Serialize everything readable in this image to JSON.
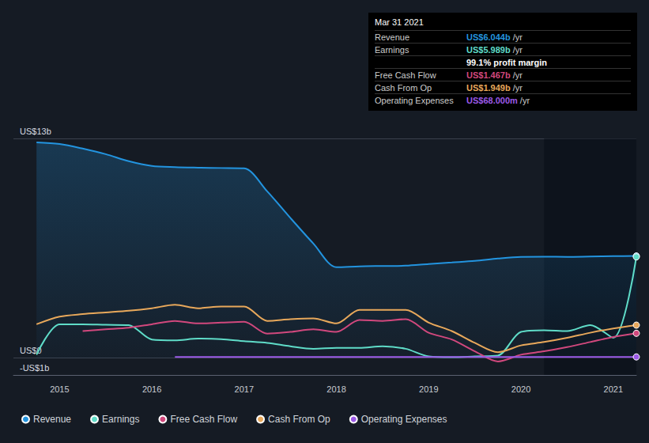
{
  "chart_data": {
    "type": "line",
    "x": [
      2014.75,
      2015,
      2015.25,
      2015.5,
      2015.75,
      2016,
      2016.25,
      2016.5,
      2016.75,
      2017,
      2017.25,
      2017.5,
      2017.75,
      2018,
      2018.25,
      2018.5,
      2018.75,
      2019,
      2019.25,
      2019.5,
      2019.75,
      2020,
      2020.25,
      2020.5,
      2020.75,
      2021,
      2021.25
    ],
    "series": [
      {
        "name": "Revenue",
        "type": "area",
        "color": "#2394df",
        "values": [
          12.77,
          12.67,
          12.4,
          12.07,
          11.65,
          11.37,
          11.3,
          11.27,
          11.25,
          11.23,
          9.87,
          8.3,
          6.78,
          5.38,
          5.43,
          5.45,
          5.47,
          5.57,
          5.66,
          5.75,
          5.89,
          5.99,
          6.0,
          5.99,
          6.01,
          6.03,
          6.044
        ]
      },
      {
        "name": "Earnings",
        "type": "line",
        "color": "#5fdcc8",
        "values": [
          0.2,
          2.0,
          2.0,
          1.97,
          1.95,
          1.1,
          1.05,
          1.15,
          1.12,
          1.0,
          0.9,
          0.7,
          0.55,
          0.6,
          0.6,
          0.7,
          0.55,
          0.1,
          0.05,
          0.1,
          0.15,
          1.55,
          1.65,
          1.6,
          1.95,
          1.2,
          5.989
        ]
      },
      {
        "name": "Free Cash Flow",
        "type": "line",
        "color": "#d1487d",
        "values": [
          null,
          null,
          1.6,
          1.7,
          1.8,
          2.0,
          2.2,
          2.05,
          2.1,
          2.15,
          1.45,
          1.55,
          1.7,
          1.55,
          2.25,
          2.2,
          2.3,
          1.5,
          1.1,
          0.4,
          -0.2,
          0.2,
          0.4,
          0.65,
          0.95,
          1.25,
          1.467
        ]
      },
      {
        "name": "Cash From Op",
        "type": "line",
        "color": "#e8a85b",
        "values": [
          2.0,
          2.45,
          2.6,
          2.7,
          2.8,
          2.95,
          3.15,
          2.95,
          3.05,
          3.05,
          2.2,
          2.3,
          2.35,
          2.05,
          2.85,
          2.85,
          2.85,
          2.1,
          1.6,
          0.9,
          0.35,
          0.75,
          0.95,
          1.2,
          1.5,
          1.75,
          1.949
        ]
      },
      {
        "name": "Operating Expenses",
        "type": "line",
        "color": "#9b59e6",
        "values": [
          null,
          null,
          null,
          null,
          null,
          null,
          0.07,
          0.07,
          0.07,
          0.07,
          0.07,
          0.07,
          0.07,
          0.07,
          0.07,
          0.07,
          0.07,
          0.07,
          0.07,
          0.07,
          0.07,
          0.07,
          0.07,
          0.07,
          0.07,
          0.07,
          0.068
        ]
      }
    ],
    "xlim": [
      2014.5,
      2021.25
    ],
    "xticks": [
      2015,
      2016,
      2017,
      2018,
      2019,
      2020,
      2021
    ],
    "ylim": [
      -1,
      13
    ],
    "yticks": [
      {
        "value": -1,
        "label": "-US$1b"
      },
      {
        "value": 0,
        "label": "US$0"
      },
      {
        "value": 13,
        "label": "US$13b"
      }
    ],
    "grid": true,
    "legend": "lower left",
    "marker": "end",
    "highlight": {
      "x": [
        2020.25,
        2021.25
      ]
    }
  },
  "info_box": {
    "title": "Mar 31 2021",
    "rows": [
      {
        "label": "Revenue",
        "value": "US$6.044b",
        "unit": "/yr",
        "color": "#2394df"
      },
      {
        "label": "Earnings",
        "value": "US$5.989b",
        "unit": "/yr",
        "color": "#5fdcc8"
      },
      {
        "text": "99.1% profit margin"
      },
      {
        "label": "Free Cash Flow",
        "value": "US$1.467b",
        "unit": "/yr",
        "color": "#d1487d"
      },
      {
        "label": "Cash From Op",
        "value": "US$1.949b",
        "unit": "/yr",
        "color": "#e8a85b"
      },
      {
        "label": "Operating Expenses",
        "value": "US$68.000m",
        "unit": "/yr",
        "color": "#9b59e6"
      }
    ]
  }
}
